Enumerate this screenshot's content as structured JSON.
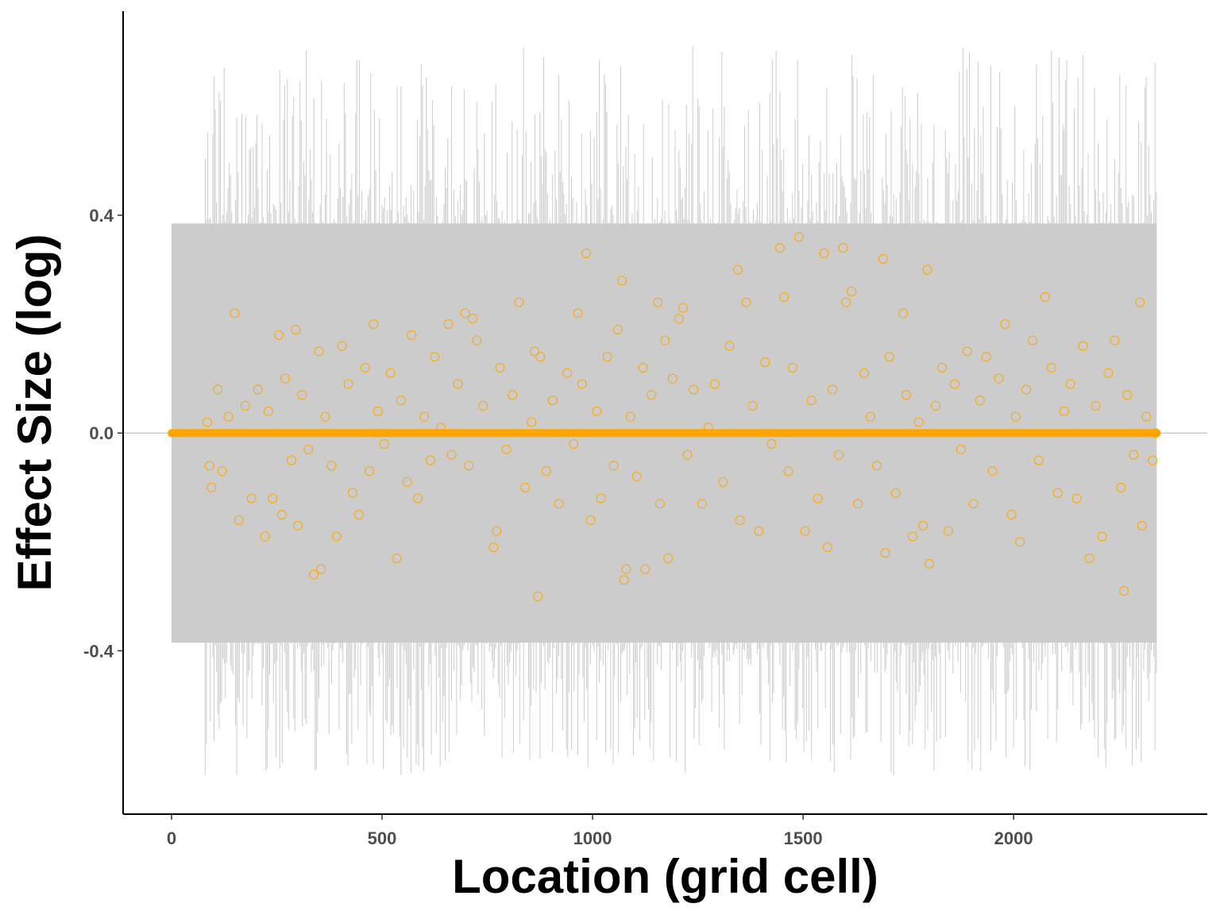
{
  "chart_data": {
    "type": "scatter",
    "title": "",
    "xlabel": "Location (grid cell)",
    "ylabel": "Effect Size (log)",
    "xlim": [
      -115,
      2460
    ],
    "ylim": [
      -0.7,
      0.775
    ],
    "x_ticks": [
      {
        "value": 0,
        "label": "0"
      },
      {
        "value": 500,
        "label": "500"
      },
      {
        "value": 1000,
        "label": "1000"
      },
      {
        "value": 1500,
        "label": "1500"
      },
      {
        "value": 2000,
        "label": "2000"
      }
    ],
    "y_ticks": [
      {
        "value": 0.4,
        "label": "0.4"
      },
      {
        "value": 0.0,
        "label": "0.0"
      },
      {
        "value": -0.4,
        "label": "-0.4"
      }
    ],
    "grid": false,
    "legend": "none",
    "zero_line": 0,
    "n_locations": 2340,
    "interval_band": {
      "lower": -0.385,
      "upper": 0.385
    },
    "interval_spike_extremes": {
      "upper_max": 0.71,
      "lower_min": -0.63
    },
    "prior_point_value": 0.0,
    "series": [
      {
        "marker": "open-circle",
        "points": [
          [
            85,
            0.02
          ],
          [
            90,
            -0.06
          ],
          [
            95,
            -0.1
          ],
          [
            110,
            0.08
          ],
          [
            120,
            -0.07
          ],
          [
            135,
            0.03
          ],
          [
            150,
            0.22
          ],
          [
            160,
            -0.16
          ],
          [
            175,
            0.05
          ],
          [
            190,
            -0.12
          ],
          [
            205,
            0.08
          ],
          [
            222,
            -0.19
          ],
          [
            230,
            0.04
          ],
          [
            240,
            -0.12
          ],
          [
            255,
            0.18
          ],
          [
            262,
            -0.15
          ],
          [
            270,
            0.1
          ],
          [
            285,
            -0.05
          ],
          [
            295,
            0.19
          ],
          [
            300,
            -0.17
          ],
          [
            310,
            0.07
          ],
          [
            325,
            -0.03
          ],
          [
            338,
            -0.26
          ],
          [
            350,
            0.15
          ],
          [
            355,
            -0.25
          ],
          [
            365,
            0.03
          ],
          [
            380,
            -0.06
          ],
          [
            392,
            -0.19
          ],
          [
            405,
            0.16
          ],
          [
            420,
            0.09
          ],
          [
            430,
            -0.11
          ],
          [
            445,
            -0.15
          ],
          [
            460,
            0.12
          ],
          [
            470,
            -0.07
          ],
          [
            480,
            0.2
          ],
          [
            490,
            0.04
          ],
          [
            505,
            -0.02
          ],
          [
            520,
            0.11
          ],
          [
            535,
            -0.23
          ],
          [
            545,
            0.06
          ],
          [
            560,
            -0.09
          ],
          [
            570,
            0.18
          ],
          [
            585,
            -0.12
          ],
          [
            600,
            0.03
          ],
          [
            615,
            -0.05
          ],
          [
            625,
            0.14
          ],
          [
            640,
            0.01
          ],
          [
            658,
            0.2
          ],
          [
            665,
            -0.04
          ],
          [
            680,
            0.09
          ],
          [
            698,
            0.22
          ],
          [
            706,
            -0.06
          ],
          [
            715,
            0.21
          ],
          [
            725,
            0.17
          ],
          [
            740,
            0.05
          ],
          [
            765,
            -0.21
          ],
          [
            772,
            -0.18
          ],
          [
            780,
            0.12
          ],
          [
            795,
            -0.03
          ],
          [
            810,
            0.07
          ],
          [
            825,
            0.24
          ],
          [
            840,
            -0.1
          ],
          [
            855,
            0.02
          ],
          [
            862,
            0.15
          ],
          [
            870,
            -0.3
          ],
          [
            876,
            0.14
          ],
          [
            890,
            -0.07
          ],
          [
            905,
            0.06
          ],
          [
            920,
            -0.13
          ],
          [
            940,
            0.11
          ],
          [
            955,
            -0.02
          ],
          [
            965,
            0.22
          ],
          [
            975,
            0.09
          ],
          [
            985,
            0.33
          ],
          [
            995,
            -0.16
          ],
          [
            1010,
            0.04
          ],
          [
            1020,
            -0.12
          ],
          [
            1035,
            0.14
          ],
          [
            1050,
            -0.06
          ],
          [
            1060,
            0.19
          ],
          [
            1070,
            0.28
          ],
          [
            1075,
            -0.27
          ],
          [
            1080,
            -0.25
          ],
          [
            1090,
            0.03
          ],
          [
            1105,
            -0.08
          ],
          [
            1120,
            0.12
          ],
          [
            1125,
            -0.25
          ],
          [
            1140,
            0.07
          ],
          [
            1155,
            0.24
          ],
          [
            1160,
            -0.13
          ],
          [
            1172,
            0.17
          ],
          [
            1180,
            -0.23
          ],
          [
            1190,
            0.1
          ],
          [
            1205,
            0.21
          ],
          [
            1215,
            0.23
          ],
          [
            1225,
            -0.04
          ],
          [
            1240,
            0.08
          ],
          [
            1260,
            -0.13
          ],
          [
            1275,
            0.01
          ],
          [
            1290,
            0.09
          ],
          [
            1310,
            -0.09
          ],
          [
            1325,
            0.16
          ],
          [
            1345,
            0.3
          ],
          [
            1350,
            -0.16
          ],
          [
            1365,
            0.24
          ],
          [
            1380,
            0.05
          ],
          [
            1395,
            -0.18
          ],
          [
            1410,
            0.13
          ],
          [
            1425,
            -0.02
          ],
          [
            1445,
            0.34
          ],
          [
            1455,
            0.25
          ],
          [
            1465,
            -0.07
          ],
          [
            1475,
            0.12
          ],
          [
            1490,
            0.36
          ],
          [
            1505,
            -0.18
          ],
          [
            1520,
            0.06
          ],
          [
            1535,
            -0.12
          ],
          [
            1550,
            0.33
          ],
          [
            1558,
            -0.21
          ],
          [
            1570,
            0.08
          ],
          [
            1585,
            -0.04
          ],
          [
            1595,
            0.34
          ],
          [
            1602,
            0.24
          ],
          [
            1615,
            0.26
          ],
          [
            1630,
            -0.13
          ],
          [
            1645,
            0.11
          ],
          [
            1660,
            0.03
          ],
          [
            1675,
            -0.06
          ],
          [
            1690,
            0.32
          ],
          [
            1695,
            -0.22
          ],
          [
            1705,
            0.14
          ],
          [
            1720,
            -0.11
          ],
          [
            1738,
            0.22
          ],
          [
            1745,
            0.07
          ],
          [
            1760,
            -0.19
          ],
          [
            1775,
            0.02
          ],
          [
            1785,
            -0.17
          ],
          [
            1795,
            0.3
          ],
          [
            1800,
            -0.24
          ],
          [
            1815,
            0.05
          ],
          [
            1830,
            0.12
          ],
          [
            1845,
            -0.18
          ],
          [
            1860,
            0.09
          ],
          [
            1875,
            -0.03
          ],
          [
            1890,
            0.15
          ],
          [
            1905,
            -0.13
          ],
          [
            1920,
            0.06
          ],
          [
            1935,
            0.14
          ],
          [
            1950,
            -0.07
          ],
          [
            1965,
            0.1
          ],
          [
            1980,
            0.2
          ],
          [
            1995,
            -0.15
          ],
          [
            2005,
            0.03
          ],
          [
            2015,
            -0.2
          ],
          [
            2030,
            0.08
          ],
          [
            2045,
            0.17
          ],
          [
            2060,
            -0.05
          ],
          [
            2075,
            0.25
          ],
          [
            2090,
            0.12
          ],
          [
            2105,
            -0.11
          ],
          [
            2120,
            0.04
          ],
          [
            2135,
            0.09
          ],
          [
            2150,
            -0.12
          ],
          [
            2165,
            0.16
          ],
          [
            2180,
            -0.23
          ],
          [
            2195,
            0.05
          ],
          [
            2210,
            -0.19
          ],
          [
            2225,
            0.11
          ],
          [
            2240,
            0.17
          ],
          [
            2255,
            -0.1
          ],
          [
            2262,
            -0.29
          ],
          [
            2270,
            0.07
          ],
          [
            2285,
            -0.04
          ],
          [
            2300,
            0.24
          ],
          [
            2305,
            -0.17
          ],
          [
            2315,
            0.03
          ],
          [
            2330,
            -0.05
          ],
          [
            2337,
            0.0
          ]
        ]
      }
    ],
    "colors": {
      "points": "#FFA500",
      "interval": "#CCCCCC",
      "zero_line": "#BEBEBE",
      "axis": "#000000",
      "tick_label": "#4D4D4D"
    }
  }
}
